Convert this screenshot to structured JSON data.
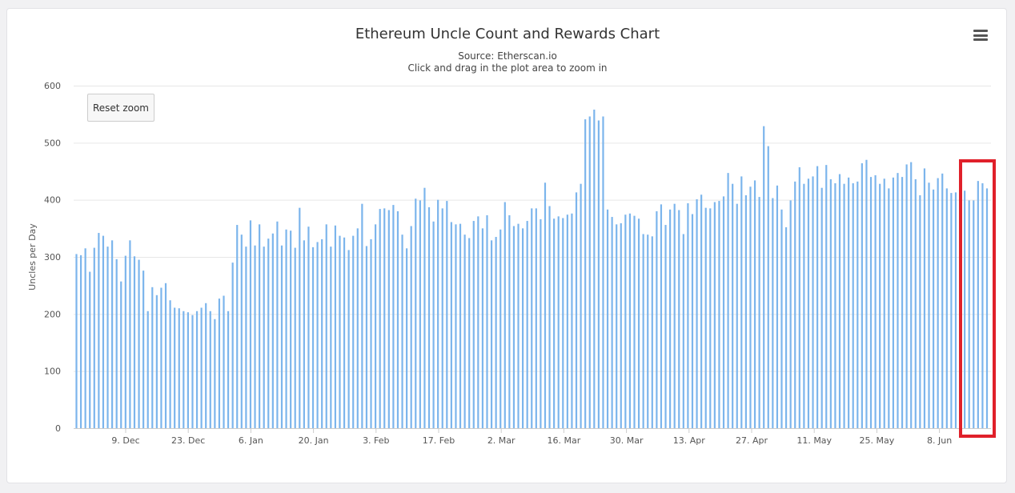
{
  "chart_data": {
    "type": "bar",
    "title": "Ethereum Uncle Count and Rewards Chart",
    "subtitle_source": "Source: Etherscan.io",
    "subtitle_hint": "Click and drag in the plot area to zoom in",
    "ylabel": "Uncles per Day",
    "xlabel": "",
    "ylim": [
      0,
      600
    ],
    "yticks": [
      0,
      100,
      200,
      300,
      400,
      500,
      600
    ],
    "xtick_labels": [
      "9. Dec",
      "23. Dec",
      "6. Jan",
      "20. Jan",
      "3. Feb",
      "17. Feb",
      "2. Mar",
      "16. Mar",
      "30. Mar",
      "13. Apr",
      "27. Apr",
      "11. May",
      "25. May",
      "8. Jun"
    ],
    "grid": true,
    "bar_color": "#7cb5ec",
    "values": [
      305,
      303,
      315,
      274,
      316,
      342,
      337,
      318,
      329,
      296,
      257,
      302,
      329,
      301,
      295,
      276,
      205,
      247,
      233,
      246,
      254,
      224,
      211,
      210,
      205,
      203,
      198,
      205,
      211,
      219,
      205,
      191,
      227,
      232,
      205,
      290,
      356,
      339,
      318,
      364,
      320,
      357,
      318,
      332,
      341,
      362,
      320,
      348,
      346,
      316,
      386,
      329,
      353,
      317,
      326,
      331,
      357,
      318,
      355,
      337,
      334,
      312,
      337,
      350,
      393,
      319,
      331,
      357,
      384,
      385,
      382,
      391,
      380,
      339,
      315,
      354,
      402,
      399,
      421,
      387,
      362,
      400,
      385,
      398,
      361,
      357,
      358,
      339,
      333,
      363,
      371,
      350,
      373,
      329,
      335,
      348,
      396,
      373,
      354,
      358,
      350,
      363,
      385,
      385,
      366,
      430,
      389,
      367,
      371,
      368,
      374,
      376,
      413,
      428,
      541,
      546,
      558,
      539,
      546,
      383,
      370,
      357,
      359,
      374,
      376,
      372,
      367,
      340,
      339,
      336,
      380,
      392,
      356,
      383,
      393,
      382,
      340,
      394,
      375,
      401,
      409,
      386,
      385,
      396,
      398,
      406,
      447,
      428,
      393,
      441,
      408,
      423,
      434,
      405,
      529,
      494,
      403,
      425,
      383,
      352,
      399,
      432,
      457,
      428,
      437,
      441,
      459,
      421,
      461,
      436,
      429,
      445,
      428,
      439,
      429,
      432,
      464,
      470,
      440,
      443,
      428,
      437,
      420,
      439,
      447,
      440,
      462,
      466,
      436,
      408,
      455,
      430,
      418,
      438,
      446,
      420,
      412,
      413,
      400,
      416,
      399,
      399,
      433,
      429,
      420
    ]
  },
  "ui": {
    "reset_zoom_label": "Reset zoom",
    "menu_icon": "hamburger-menu-icon",
    "highlight_color": "#e0202a"
  }
}
